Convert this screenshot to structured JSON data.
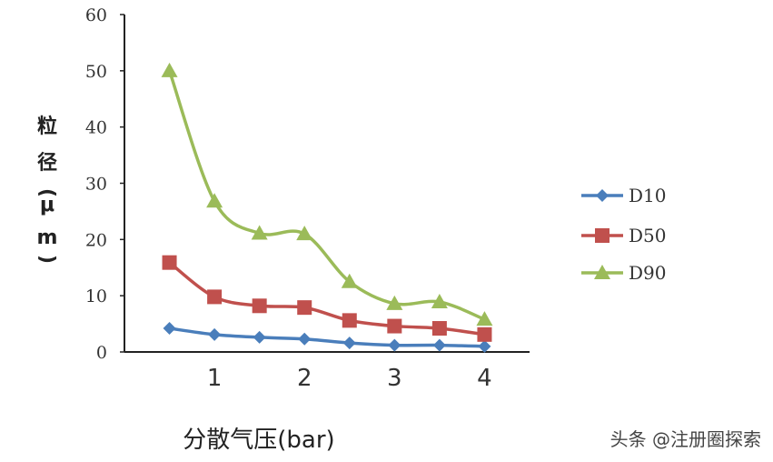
{
  "chart_data": {
    "type": "line",
    "title": "",
    "xlabel": "分散气压(bar)",
    "ylabel_chars": [
      "粒",
      "径",
      "(",
      "μ",
      "m",
      ")"
    ],
    "x": [
      0.5,
      1,
      1.5,
      2,
      2.5,
      3,
      3.5,
      4
    ],
    "xticks": [
      "1",
      "2",
      "3",
      "4"
    ],
    "xlim": [
      0,
      4.5
    ],
    "ylim": [
      0,
      60
    ],
    "yticks": [
      "0",
      "10",
      "20",
      "30",
      "40",
      "50",
      "60"
    ],
    "grid": false,
    "legend_position": "right",
    "series": [
      {
        "name": "D10",
        "color": "#4a7ebb",
        "marker": "diamond",
        "values": [
          4.2,
          3.1,
          2.6,
          2.3,
          1.6,
          1.2,
          1.2,
          1.0
        ]
      },
      {
        "name": "D50",
        "color": "#c0504d",
        "marker": "square",
        "values": [
          15.9,
          9.8,
          8.2,
          7.9,
          5.6,
          4.6,
          4.2,
          3.1
        ]
      },
      {
        "name": "D90",
        "color": "#9bbb59",
        "marker": "triangle",
        "values": [
          50,
          26.8,
          21.1,
          21.0,
          12.5,
          8.6,
          8.9,
          5.8
        ]
      }
    ]
  },
  "watermark": "头条 @注册圈探索"
}
